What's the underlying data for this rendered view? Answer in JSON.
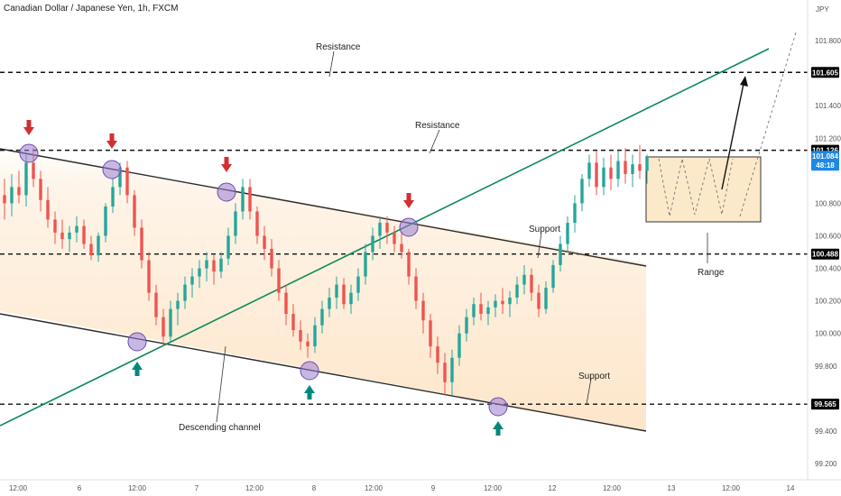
{
  "chart_data": {
    "type": "candlestick",
    "title": "Canadian Dollar / Japanese Yen, 1h, FXCM",
    "currency": "JPY",
    "y_ticks": [
      "101.800",
      "101.400",
      "101.200",
      "100.800",
      "100.600",
      "100.400",
      "100.200",
      "100.000",
      "99.800",
      "99.400",
      "99.200"
    ],
    "ylim": [
      99.1,
      102.05
    ],
    "x_ticks": [
      "12:00",
      "6",
      "12:00",
      "7",
      "12:00",
      "8",
      "12:00",
      "9",
      "12:00",
      "12",
      "12:00",
      "13",
      "12:00",
      "14"
    ],
    "levels": [
      {
        "value": 101.605,
        "label": "101.605"
      },
      {
        "value": 101.126,
        "label": "101.126"
      },
      {
        "value": 100.488,
        "label": "100.488"
      },
      {
        "value": 99.565,
        "label": "99.565"
      }
    ],
    "current_price": {
      "value": "101.084",
      "countdown": "48:18"
    },
    "annotations": {
      "resistance_top": "Resistance",
      "resistance_mid": "Resistance",
      "support_mid": "Support",
      "support_low": "Support",
      "range": "Range",
      "channel": "Descending channel"
    },
    "colors": {
      "bull": "#26a69a",
      "bear": "#ef5350",
      "trendline": "#0b8a57",
      "channel_fill": "#fde3c4",
      "range_fill": "#f9d79f",
      "pivot": "#9b7cd0",
      "down_arrow": "#d32f2f",
      "up_arrow": "#00897b",
      "price_tag": "#1e88e5",
      "level_tag": "#000000"
    },
    "candles": [
      [
        100.85,
        100.95,
        100.7,
        100.8
      ],
      [
        100.8,
        100.98,
        100.72,
        100.9
      ],
      [
        100.9,
        101.0,
        100.8,
        100.85
      ],
      [
        100.85,
        101.1,
        100.78,
        101.05
      ],
      [
        101.05,
        101.14,
        100.9,
        100.95
      ],
      [
        100.95,
        101.0,
        100.75,
        100.82
      ],
      [
        100.82,
        100.9,
        100.65,
        100.7
      ],
      [
        100.7,
        100.75,
        100.55,
        100.62
      ],
      [
        100.62,
        100.7,
        100.52,
        100.58
      ],
      [
        100.58,
        100.66,
        100.5,
        100.62
      ],
      [
        100.62,
        100.72,
        100.56,
        100.66
      ],
      [
        100.66,
        100.7,
        100.52,
        100.55
      ],
      [
        100.55,
        100.6,
        100.45,
        100.48
      ],
      [
        100.48,
        100.62,
        100.44,
        100.6
      ],
      [
        100.6,
        100.8,
        100.56,
        100.78
      ],
      [
        100.78,
        100.95,
        100.74,
        100.9
      ],
      [
        100.9,
        101.05,
        100.85,
        101.02
      ],
      [
        101.02,
        101.06,
        100.8,
        100.85
      ],
      [
        100.85,
        100.88,
        100.6,
        100.65
      ],
      [
        100.65,
        100.7,
        100.4,
        100.45
      ],
      [
        100.45,
        100.5,
        100.2,
        100.25
      ],
      [
        100.25,
        100.3,
        100.05,
        100.1
      ],
      [
        100.1,
        100.15,
        99.92,
        99.98
      ],
      [
        99.98,
        100.2,
        99.95,
        100.15
      ],
      [
        100.15,
        100.25,
        100.05,
        100.2
      ],
      [
        100.2,
        100.35,
        100.15,
        100.3
      ],
      [
        100.3,
        100.4,
        100.22,
        100.35
      ],
      [
        100.35,
        100.45,
        100.28,
        100.4
      ],
      [
        100.4,
        100.5,
        100.32,
        100.45
      ],
      [
        100.45,
        100.48,
        100.3,
        100.38
      ],
      [
        100.38,
        100.5,
        100.34,
        100.46
      ],
      [
        100.46,
        100.65,
        100.42,
        100.6
      ],
      [
        100.6,
        100.8,
        100.55,
        100.75
      ],
      [
        100.75,
        100.95,
        100.7,
        100.9
      ],
      [
        100.9,
        100.95,
        100.7,
        100.75
      ],
      [
        100.75,
        100.78,
        100.55,
        100.6
      ],
      [
        100.6,
        100.66,
        100.45,
        100.52
      ],
      [
        100.52,
        100.58,
        100.35,
        100.4
      ],
      [
        100.4,
        100.45,
        100.2,
        100.25
      ],
      [
        100.25,
        100.3,
        100.05,
        100.12
      ],
      [
        100.12,
        100.18,
        99.98,
        100.02
      ],
      [
        100.02,
        100.08,
        99.9,
        99.95
      ],
      [
        99.95,
        100.0,
        99.85,
        99.92
      ],
      [
        99.92,
        100.1,
        99.88,
        100.05
      ],
      [
        100.05,
        100.2,
        100.0,
        100.15
      ],
      [
        100.15,
        100.28,
        100.1,
        100.22
      ],
      [
        100.22,
        100.35,
        100.15,
        100.3
      ],
      [
        100.3,
        100.34,
        100.15,
        100.18
      ],
      [
        100.18,
        100.3,
        100.12,
        100.25
      ],
      [
        100.25,
        100.4,
        100.2,
        100.35
      ],
      [
        100.35,
        100.55,
        100.3,
        100.5
      ],
      [
        100.5,
        100.65,
        100.45,
        100.6
      ],
      [
        100.6,
        100.72,
        100.52,
        100.68
      ],
      [
        100.68,
        100.72,
        100.55,
        100.62
      ],
      [
        100.62,
        100.66,
        100.5,
        100.55
      ],
      [
        100.55,
        100.62,
        100.46,
        100.5
      ],
      [
        100.5,
        100.52,
        100.3,
        100.35
      ],
      [
        100.35,
        100.4,
        100.15,
        100.2
      ],
      [
        100.2,
        100.25,
        100.0,
        100.08
      ],
      [
        100.08,
        100.12,
        99.85,
        99.92
      ],
      [
        99.92,
        99.98,
        99.75,
        99.82
      ],
      [
        99.82,
        99.88,
        99.62,
        99.7
      ],
      [
        99.7,
        99.9,
        99.62,
        99.85
      ],
      [
        99.85,
        100.05,
        99.8,
        100.0
      ],
      [
        100.0,
        100.15,
        99.95,
        100.1
      ],
      [
        100.1,
        100.22,
        100.05,
        100.18
      ],
      [
        100.18,
        100.25,
        100.08,
        100.12
      ],
      [
        100.12,
        100.2,
        100.05,
        100.16
      ],
      [
        100.16,
        100.24,
        100.1,
        100.2
      ],
      [
        100.2,
        100.28,
        100.12,
        100.18
      ],
      [
        100.18,
        100.26,
        100.1,
        100.22
      ],
      [
        100.22,
        100.35,
        100.18,
        100.3
      ],
      [
        100.3,
        100.42,
        100.24,
        100.36
      ],
      [
        100.36,
        100.4,
        100.2,
        100.25
      ],
      [
        100.25,
        100.3,
        100.1,
        100.15
      ],
      [
        100.15,
        100.32,
        100.12,
        100.28
      ],
      [
        100.28,
        100.45,
        100.25,
        100.42
      ],
      [
        100.42,
        100.6,
        100.38,
        100.55
      ],
      [
        100.55,
        100.72,
        100.5,
        100.68
      ],
      [
        100.68,
        100.85,
        100.62,
        100.8
      ],
      [
        100.8,
        100.98,
        100.75,
        100.95
      ],
      [
        100.95,
        101.1,
        100.9,
        101.05
      ],
      [
        101.05,
        101.12,
        100.85,
        100.9
      ],
      [
        100.9,
        101.08,
        100.85,
        101.02
      ],
      [
        101.02,
        101.1,
        100.88,
        100.95
      ],
      [
        100.95,
        101.12,
        100.9,
        101.06
      ],
      [
        101.06,
        101.14,
        100.92,
        100.98
      ],
      [
        100.98,
        101.1,
        100.9,
        101.04
      ],
      [
        101.04,
        101.16,
        100.95,
        101.0
      ],
      [
        101.0,
        101.1,
        100.92,
        101.08
      ]
    ]
  }
}
